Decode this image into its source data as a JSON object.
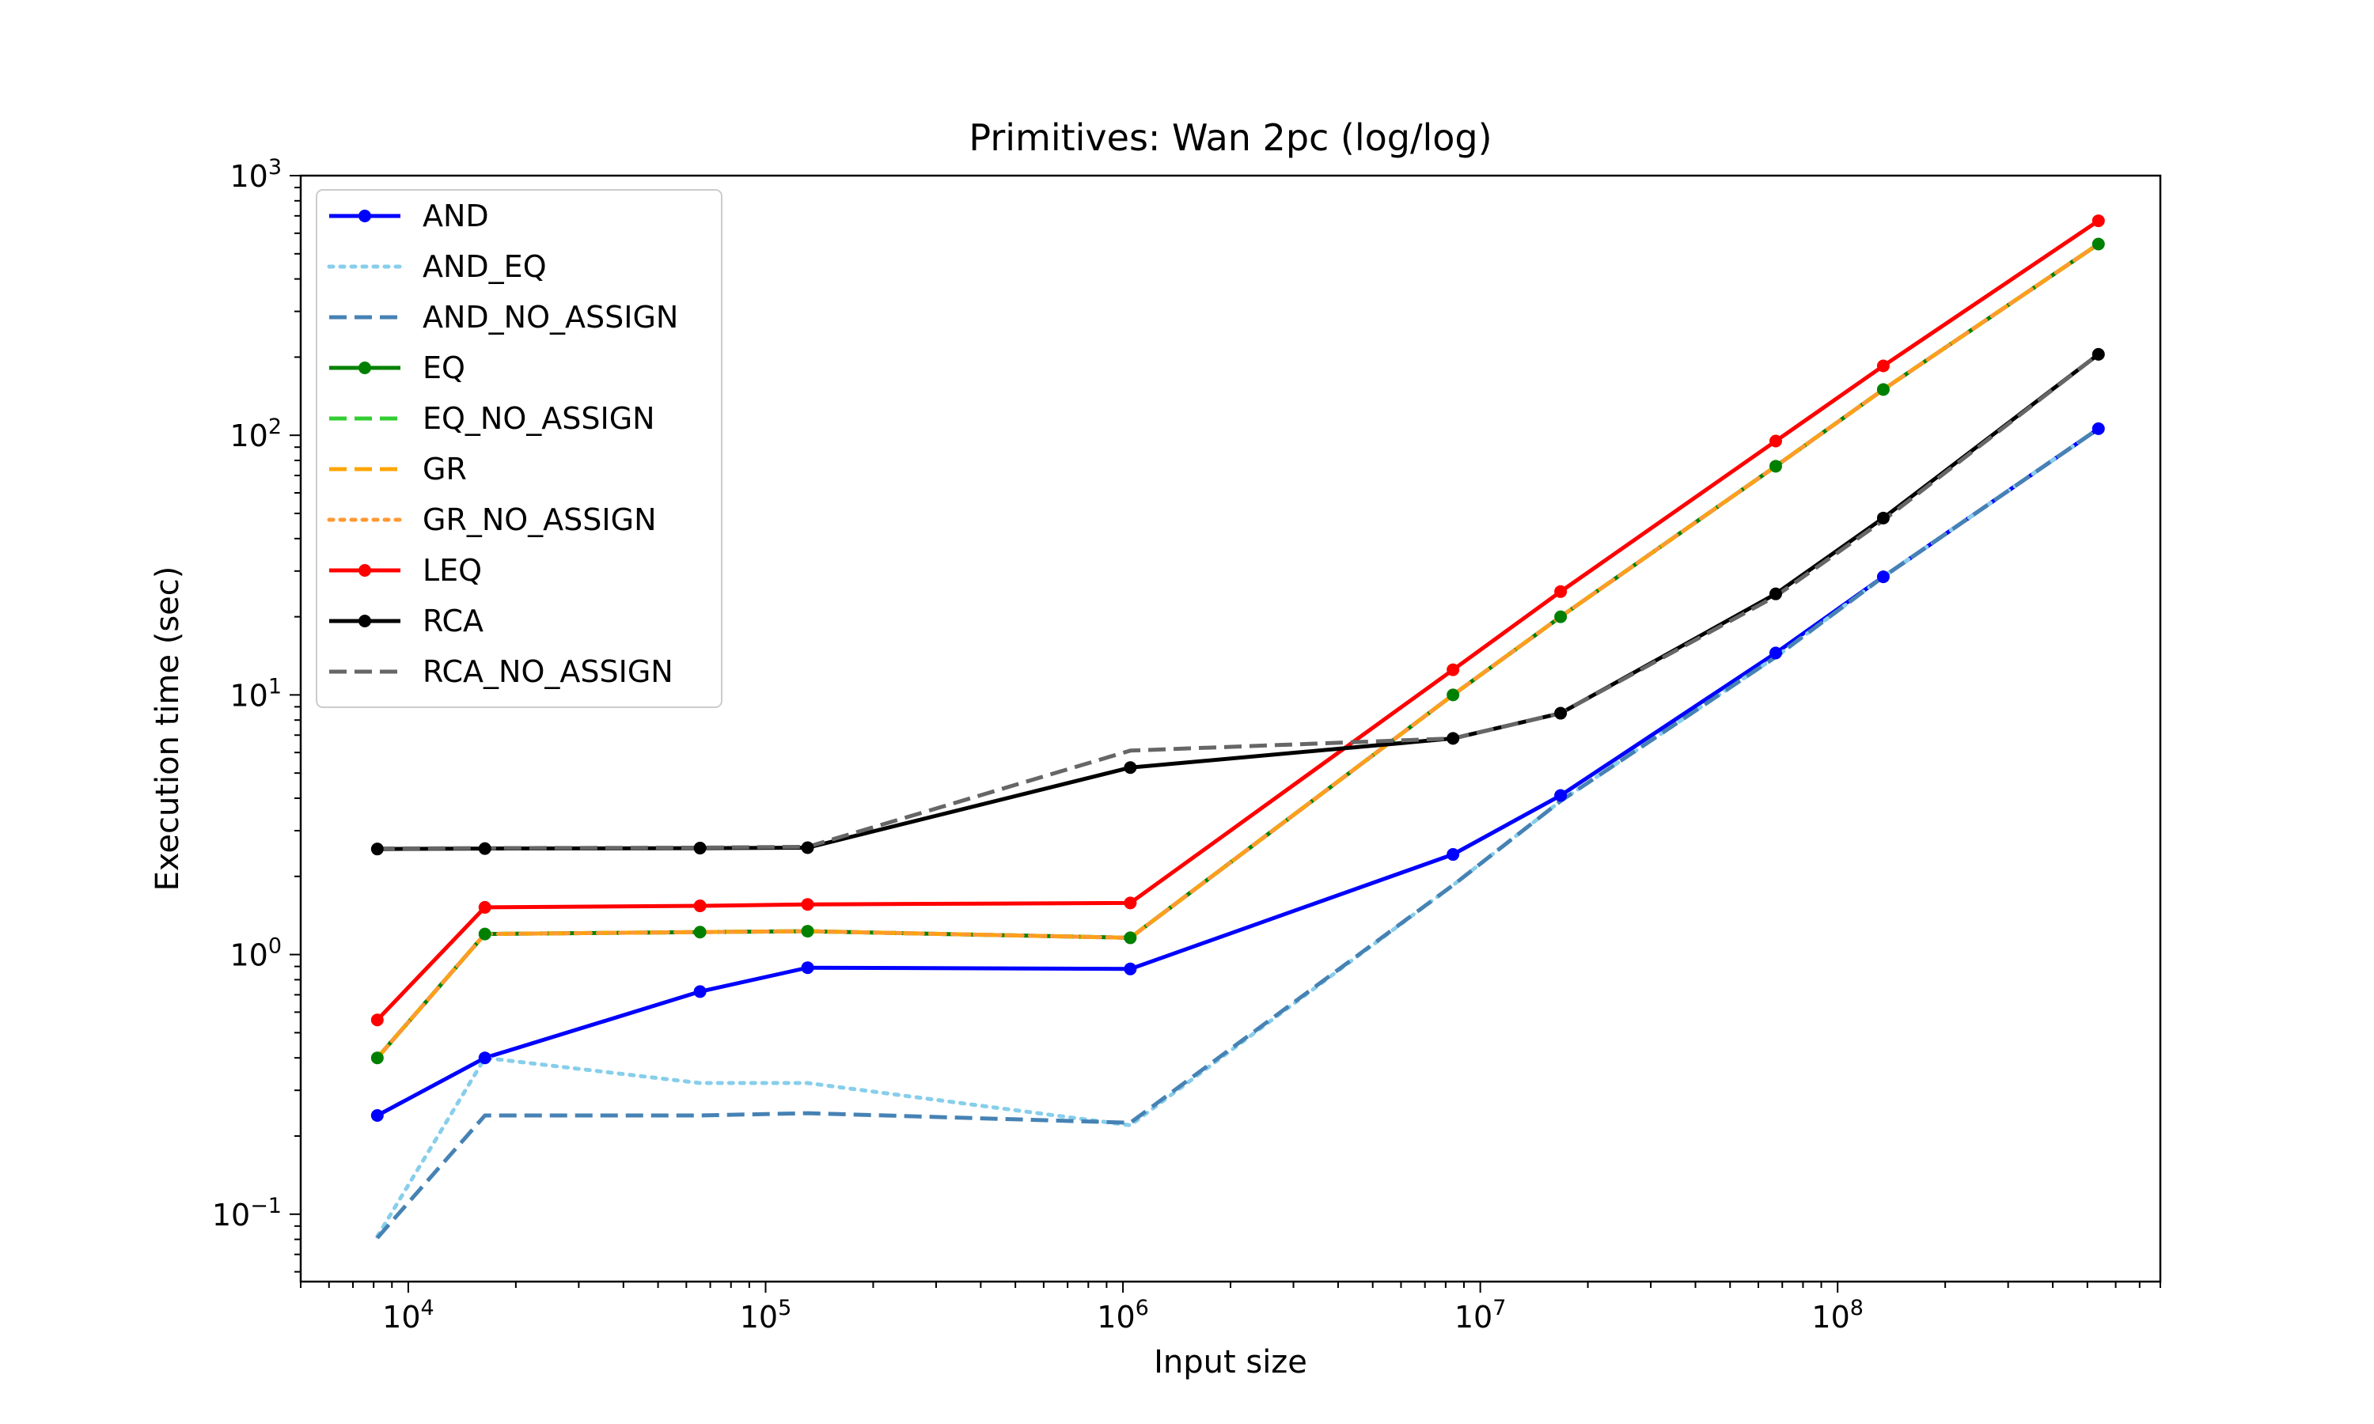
{
  "chart_data": {
    "type": "line",
    "title": "Primitives: Wan 2pc (log/log)",
    "xlabel": "Input size",
    "ylabel": "Execution time (sec)",
    "xscale": "log",
    "yscale": "log",
    "xlim": [
      5000,
      800000000
    ],
    "ylim": [
      0.055,
      1000
    ],
    "grid": false,
    "legend_position": "upper-left",
    "x_ticks": [
      {
        "value": 10000,
        "base": "10",
        "exp": "4"
      },
      {
        "value": 100000,
        "base": "10",
        "exp": "5"
      },
      {
        "value": 1000000,
        "base": "10",
        "exp": "6"
      },
      {
        "value": 10000000,
        "base": "10",
        "exp": "7"
      },
      {
        "value": 100000000,
        "base": "10",
        "exp": "8"
      }
    ],
    "y_ticks": [
      {
        "value": 0.1,
        "base": "10",
        "exp": "−1"
      },
      {
        "value": 1,
        "base": "10",
        "exp": "0"
      },
      {
        "value": 10,
        "base": "10",
        "exp": "1"
      },
      {
        "value": 100,
        "base": "10",
        "exp": "2"
      },
      {
        "value": 1000,
        "base": "10",
        "exp": "3"
      }
    ],
    "x": [
      8192,
      16384,
      65536,
      131072,
      1048576,
      8388608,
      16777216,
      67108864,
      134217728,
      536870912
    ],
    "series": [
      {
        "name": "AND",
        "color": "#0000ff",
        "dash": "solid",
        "marker": true,
        "values": [
          0.24,
          0.4,
          0.72,
          0.89,
          0.88,
          2.43,
          4.1,
          14.5,
          28.5,
          106
        ]
      },
      {
        "name": "AND_EQ",
        "color": "#87ceeb",
        "dash": "dotted",
        "marker": false,
        "values": [
          0.082,
          0.4,
          0.32,
          0.32,
          0.22,
          1.85,
          3.9,
          14.0,
          28.5,
          106
        ]
      },
      {
        "name": "AND_NO_ASSIGN",
        "color": "#4682b4",
        "dash": "dashed",
        "marker": false,
        "values": [
          0.081,
          0.24,
          0.24,
          0.245,
          0.225,
          1.85,
          3.9,
          14.0,
          28.5,
          106
        ]
      },
      {
        "name": "EQ",
        "color": "#008000",
        "dash": "solid",
        "marker": true,
        "values": [
          0.4,
          1.2,
          1.22,
          1.23,
          1.16,
          10.0,
          20.0,
          76,
          150,
          545
        ]
      },
      {
        "name": "EQ_NO_ASSIGN",
        "color": "#32cd32",
        "dash": "dashed",
        "marker": false,
        "values": [
          0.4,
          1.2,
          1.22,
          1.23,
          1.16,
          10.0,
          20.0,
          76,
          150,
          545
        ]
      },
      {
        "name": "GR",
        "color": "#ffa500",
        "dash": "dashed",
        "marker": false,
        "values": [
          0.4,
          1.2,
          1.22,
          1.23,
          1.16,
          10.0,
          20.0,
          76,
          150,
          545
        ]
      },
      {
        "name": "GR_NO_ASSIGN",
        "color": "#ff9933",
        "dash": "dotted",
        "marker": false,
        "values": [
          0.4,
          1.2,
          1.22,
          1.23,
          1.16,
          10.0,
          20.0,
          76,
          150,
          545
        ]
      },
      {
        "name": "LEQ",
        "color": "#ff0000",
        "dash": "solid",
        "marker": true,
        "values": [
          0.56,
          1.52,
          1.54,
          1.56,
          1.58,
          12.5,
          25,
          95,
          185,
          670
        ]
      },
      {
        "name": "RCA",
        "color": "#000000",
        "dash": "solid",
        "marker": true,
        "values": [
          2.55,
          2.56,
          2.57,
          2.58,
          5.25,
          6.8,
          8.5,
          24.5,
          48,
          205
        ]
      },
      {
        "name": "RCA_NO_ASSIGN",
        "color": "#666666",
        "dash": "dashed",
        "marker": false,
        "values": [
          2.56,
          2.57,
          2.58,
          2.6,
          6.1,
          6.8,
          8.5,
          24.0,
          47,
          205
        ]
      }
    ]
  }
}
